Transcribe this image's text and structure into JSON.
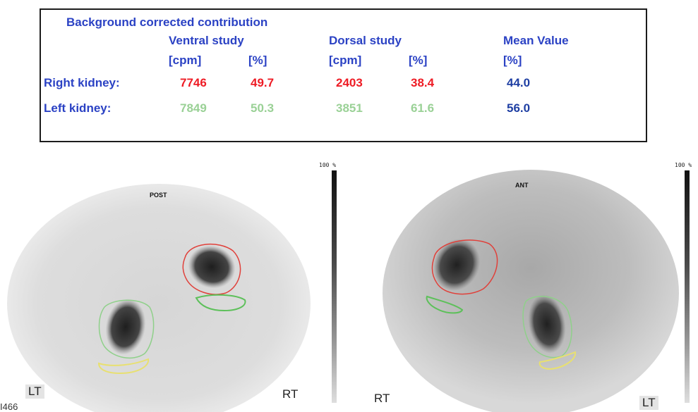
{
  "table": {
    "title": "Background corrected contribution",
    "ventral_header": "Ventral study",
    "dorsal_header": "Dorsal study",
    "mean_header": "Mean Value",
    "units": [
      "[cpm]",
      "[%]",
      "[cpm]",
      "[%]",
      "[%]"
    ],
    "rows": [
      {
        "label": "Right kidney:",
        "ventral_cpm": "7746",
        "ventral_pct": "49.7",
        "dorsal_cpm": "2403",
        "dorsal_pct": "38.4",
        "mean_pct": "44.0"
      },
      {
        "label": "Left kidney:",
        "ventral_cpm": "7849",
        "ventral_pct": "50.3",
        "dorsal_cpm": "3851",
        "dorsal_pct": "61.6",
        "mean_pct": "56.0"
      }
    ],
    "colors": {
      "header": "#2b42c4",
      "right": "#ee1c25",
      "left": "#9ad196",
      "mean": "#1f3fa3"
    }
  },
  "scans": {
    "posterior": {
      "view_label": "POST",
      "scale_label": "100 %",
      "left_marker": "LT",
      "right_marker": "RT"
    },
    "anterior": {
      "view_label": "ANT",
      "scale_label": "100 %",
      "left_marker": "RT",
      "right_marker": "LT"
    }
  },
  "image_id": "I466",
  "roi_colors": {
    "kidney_right": "#e0403a",
    "kidney_left": "#8fd08a",
    "background_left": "#e8e070"
  }
}
